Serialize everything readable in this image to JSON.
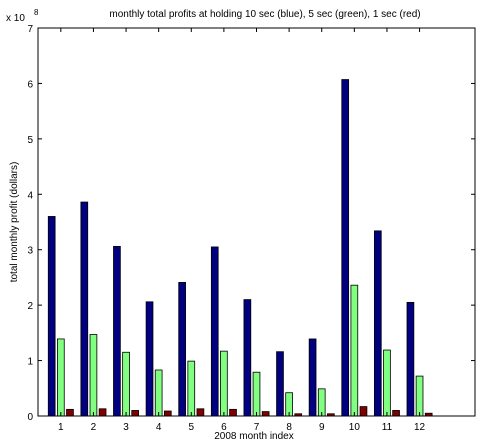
{
  "chart_data": {
    "type": "bar",
    "title": "monthly total profits at holding 10 sec (blue), 5 sec (green), 1 sec (red)",
    "xlabel": "2008 month index",
    "ylabel": "total monthly profit (dollars)",
    "y_exponent_base": "x 10",
    "y_exponent_power": "8",
    "categories": [
      "1",
      "2",
      "3",
      "4",
      "5",
      "6",
      "7",
      "8",
      "9",
      "10",
      "11",
      "12"
    ],
    "xlim": [
      0.3,
      13.7
    ],
    "ylim": [
      0,
      7
    ],
    "yticks": [
      "0",
      "1",
      "2",
      "3",
      "4",
      "5",
      "6",
      "7"
    ],
    "grid": false,
    "series": [
      {
        "color": "#000080",
        "values": [
          3.6,
          3.86,
          3.06,
          2.06,
          2.41,
          3.05,
          2.1,
          1.16,
          1.39,
          6.07,
          3.34,
          2.05
        ]
      },
      {
        "color": "#80ff80",
        "values": [
          1.39,
          1.47,
          1.15,
          0.83,
          0.99,
          1.17,
          0.79,
          0.42,
          0.49,
          2.36,
          1.19,
          0.72
        ]
      },
      {
        "color": "#800000",
        "values": [
          0.12,
          0.13,
          0.1,
          0.09,
          0.13,
          0.12,
          0.08,
          0.04,
          0.04,
          0.17,
          0.1,
          0.05
        ]
      }
    ]
  }
}
